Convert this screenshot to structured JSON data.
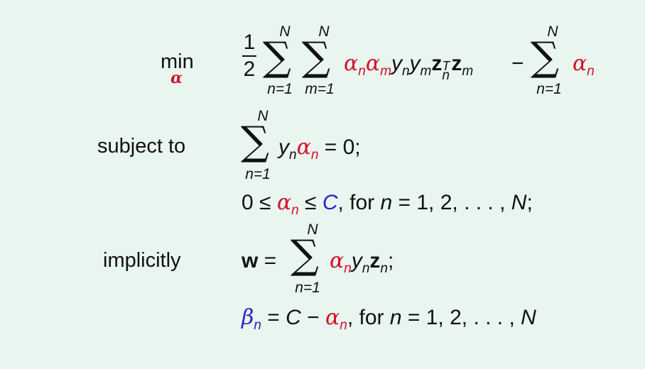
{
  "colors": {
    "background": "#e9f5ef",
    "text": "#111111",
    "highlight_red": "#d5112a",
    "highlight_blue": "#2424c8"
  },
  "labels": {
    "min": "min",
    "min_var": "α",
    "subject_to": "subject to",
    "implicitly": "implicitly"
  },
  "objective": {
    "frac_num": "1",
    "frac_den": "2",
    "sum1_upper": "N",
    "sum1_lower": "n=1",
    "sum2_upper": "N",
    "sum2_lower": "m=1",
    "sum3_upper": "N",
    "sum3_lower": "n=1",
    "alpha": "α",
    "sub_n": "n",
    "sub_m": "m",
    "y": "y",
    "z": "z",
    "sup_T": "T",
    "minus": "−"
  },
  "constraint1": {
    "sum_upper": "N",
    "sum_lower": "n=1",
    "y": "y",
    "sub_n": "n",
    "alpha": "α",
    "rest": " = 0;"
  },
  "constraint2": {
    "zero": "0 ≤ ",
    "alpha": "α",
    "sub_n": "n",
    "leq": " ≤ ",
    "C": "C",
    "for_text": ", for ",
    "n": "n",
    "range": " = 1, 2, . . . , ",
    "N": "N",
    "end": ";"
  },
  "implicit1": {
    "w": "w",
    "eq": " = ",
    "sum_upper": "N",
    "sum_lower": "n=1",
    "alpha": "α",
    "sub_n": "n",
    "y": "y",
    "z": "z",
    "end": ";"
  },
  "implicit2": {
    "beta": "β",
    "sub_n": "n",
    "eq": " = ",
    "C": "C",
    "minus": " − ",
    "alpha": "α",
    "for_text": ", for ",
    "n": "n",
    "range": " = 1, 2, . . . , ",
    "N": "N"
  }
}
